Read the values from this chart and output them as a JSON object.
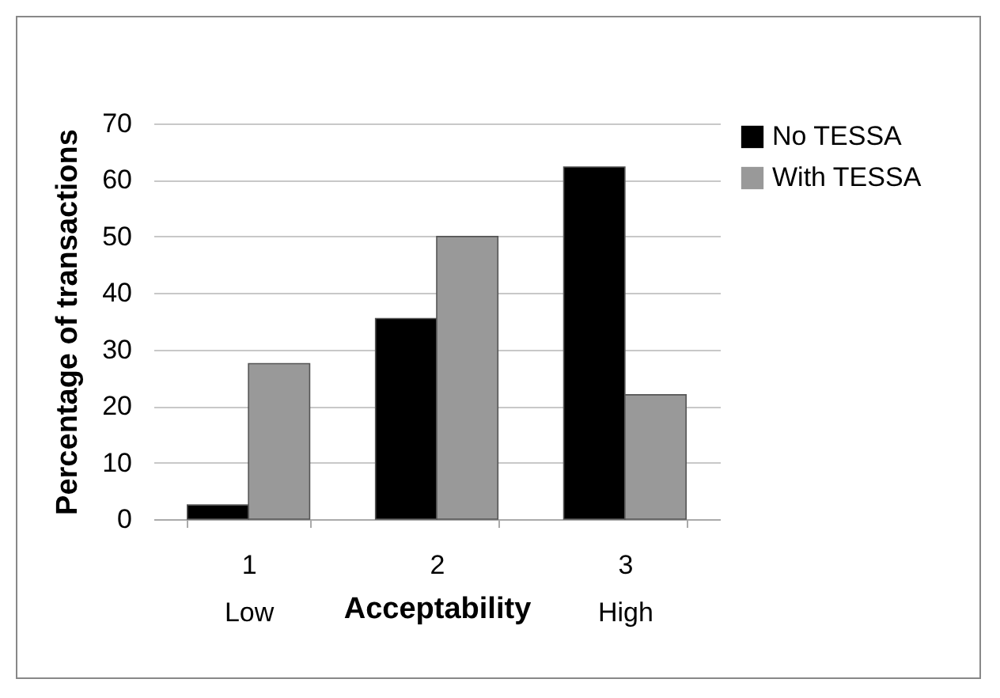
{
  "chart_data": {
    "type": "bar",
    "xlabel": "Acceptability",
    "ylabel": "Percentage of transactions",
    "categories": [
      "1\nLow",
      "2",
      "3\nHigh"
    ],
    "series": [
      {
        "name": "No TESSA",
        "color": "#000000",
        "values": [
          2.5,
          35.5,
          62.3
        ]
      },
      {
        "name": "With TESSA",
        "color": "#999999",
        "values": [
          27.5,
          50,
          22
        ]
      }
    ],
    "ylim": [
      0,
      70
    ],
    "yticks": [
      0,
      10,
      20,
      30,
      40,
      50,
      60,
      70
    ],
    "grid": "y",
    "legend": "right"
  }
}
